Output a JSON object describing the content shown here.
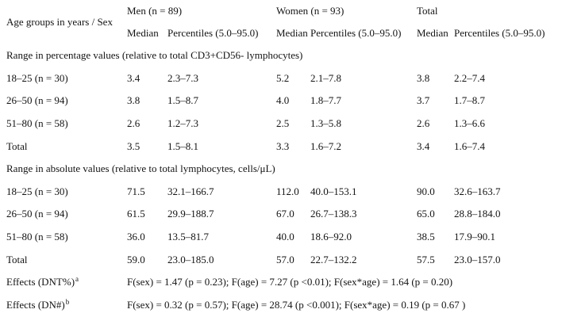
{
  "header": {
    "row_label": "Age groups in years / Sex",
    "groups": [
      {
        "label": "Men (n = 89)"
      },
      {
        "label": "Women (n = 93)"
      },
      {
        "label": "Total"
      }
    ],
    "median_label": "Median",
    "percentiles_label": "Percentiles (5.0–95.0)"
  },
  "sections": [
    {
      "title": "Range in percentage values (relative to total CD3+CD56- lymphocytes)",
      "rows": [
        {
          "label": "18–25 (n = 30)",
          "men_median": "3.4",
          "men_pct": "2.3–7.3",
          "women_median": "5.2",
          "women_pct": "2.1–7.8",
          "total_median": "3.8",
          "total_pct": "2.2–7.4"
        },
        {
          "label": "26–50 (n = 94)",
          "men_median": "3.8",
          "men_pct": "1.5–8.7",
          "women_median": "4.0",
          "women_pct": "1.8–7.7",
          "total_median": "3.7",
          "total_pct": "1.7–8.7"
        },
        {
          "label": "51–80 (n = 58)",
          "men_median": "2.6",
          "men_pct": "1.2–7.3",
          "women_median": "2.5",
          "women_pct": "1.3–5.8",
          "total_median": "2.6",
          "total_pct": "1.3–6.6"
        },
        {
          "label": "Total",
          "men_median": "3.5",
          "men_pct": "1.5–8.1",
          "women_median": "3.3",
          "women_pct": "1.6–7.2",
          "total_median": "3.4",
          "total_pct": "1.6–7.4"
        }
      ]
    },
    {
      "title": "Range in absolute values (relative to total lymphocytes, cells/μL)",
      "rows": [
        {
          "label": "18–25 (n = 30)",
          "men_median": "71.5",
          "men_pct": "32.1–166.7",
          "women_median": "112.0",
          "women_pct": "40.0–153.1",
          "total_median": "90.0",
          "total_pct": "32.6–163.7"
        },
        {
          "label": "26–50 (n = 94)",
          "men_median": "61.5",
          "men_pct": "29.9–188.7",
          "women_median": "67.0",
          "women_pct": "26.7–138.3",
          "total_median": "65.0",
          "total_pct": "28.8–184.0"
        },
        {
          "label": "51–80 (n = 58)",
          "men_median": "36.0",
          "men_pct": "13.5–81.7",
          "women_median": "40.0",
          "women_pct": "18.6–92.0",
          "total_median": "38.5",
          "total_pct": "17.9–90.1"
        },
        {
          "label": "Total",
          "men_median": "59.0",
          "men_pct": "23.0–185.0",
          "women_median": "57.0",
          "women_pct": "22.7–132.2",
          "total_median": "57.5",
          "total_pct": "23.0–157.0"
        }
      ]
    }
  ],
  "effects": [
    {
      "label": "Effects (DNT%)",
      "sup": "a",
      "text": "F(sex) = 1.47 (p = 0.23); F(age) = 7.27 (p <0.01); F(sex*age) = 1.64 (p = 0.20)"
    },
    {
      "label": "Effects (DN#)",
      "sup": "b",
      "text": "F(sex) = 0.32 (p = 0.57); F(age) = 28.74 (p <0.001); F(sex*age) = 0.19 (p = 0.67 )"
    }
  ]
}
